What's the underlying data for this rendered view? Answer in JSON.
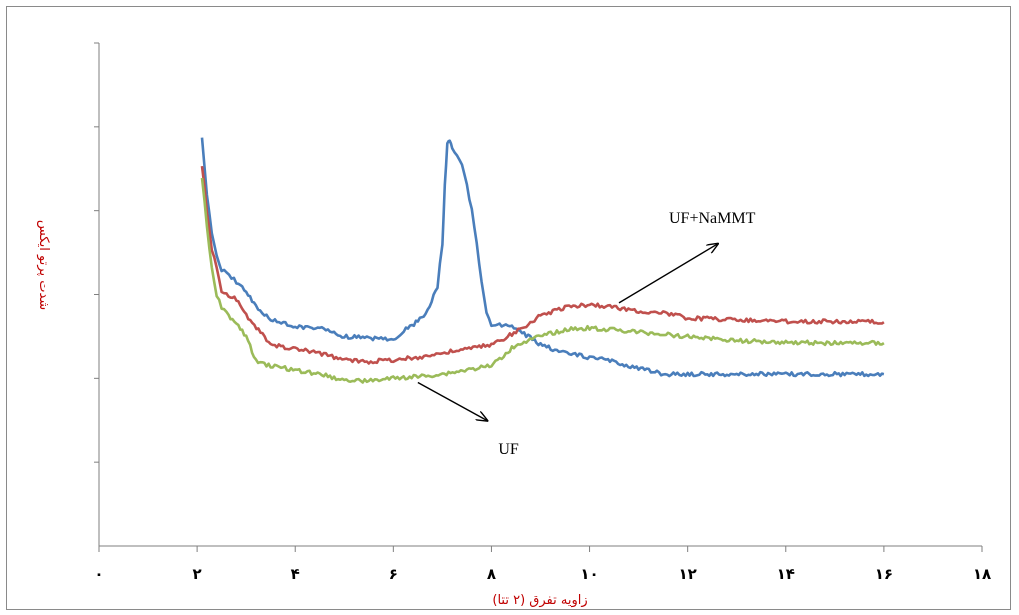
{
  "chart_data": {
    "type": "line",
    "xlabel": "زاویه تفرق (۲ تتا)",
    "ylabel": "شدت پرتو ایکس",
    "xlim": [
      0,
      18
    ],
    "x_ticks": [
      0,
      2,
      4,
      6,
      8,
      10,
      12,
      14,
      16,
      18
    ],
    "x_tick_labels": [
      "۰",
      "۲",
      "۴",
      "۶",
      "۸",
      "۱۰",
      "۱۲",
      "۱۴",
      "۱۶",
      "۱۸"
    ],
    "ylim": [
      0,
      6
    ],
    "y_ticks": [
      1,
      2,
      3,
      4,
      5,
      6
    ],
    "y_tick_labels": [
      "",
      "",
      "",
      "",
      "",
      ""
    ],
    "grid": false,
    "annotations": [
      {
        "text": "UF+NaMMT",
        "label_at": [
          12.5,
          3.85
        ],
        "arrow_from": [
          10.6,
          2.9
        ],
        "arrow_to": [
          12.6,
          3.6
        ]
      },
      {
        "text": "UF",
        "label_at": [
          8.35,
          1.1
        ],
        "arrow_from": [
          6.5,
          1.95
        ],
        "arrow_to": [
          7.9,
          1.5
        ]
      }
    ],
    "series": [
      {
        "color": "#4a7ebb",
        "x": [
          2.1,
          2.2,
          2.3,
          2.4,
          2.5,
          2.6,
          2.7,
          2.8,
          3.0,
          3.2,
          3.5,
          3.8,
          4.0,
          4.5,
          5.0,
          5.5,
          6.0,
          6.3,
          6.5,
          6.7,
          6.9,
          7.0,
          7.05,
          7.1,
          7.15,
          7.2,
          7.3,
          7.4,
          7.5,
          7.6,
          7.7,
          7.8,
          7.9,
          8.0,
          8.5,
          9.0,
          9.5,
          10.0,
          10.5,
          11.0,
          11.5,
          12.0,
          13.0,
          14.0,
          15.0,
          16.0
        ],
        "y": [
          4.85,
          4.2,
          3.75,
          3.45,
          3.3,
          3.25,
          3.2,
          3.15,
          3.05,
          2.85,
          2.7,
          2.65,
          2.62,
          2.6,
          2.5,
          2.48,
          2.47,
          2.6,
          2.68,
          2.8,
          3.1,
          3.6,
          4.3,
          4.8,
          4.85,
          4.75,
          4.65,
          4.55,
          4.3,
          4.0,
          3.6,
          3.15,
          2.8,
          2.65,
          2.6,
          2.4,
          2.3,
          2.25,
          2.2,
          2.12,
          2.05,
          2.05,
          2.05,
          2.05,
          2.05,
          2.05
        ]
      },
      {
        "color": "#c0504d",
        "x": [
          2.1,
          2.2,
          2.3,
          2.4,
          2.5,
          2.6,
          2.8,
          3.0,
          3.5,
          4.0,
          4.5,
          5.0,
          5.5,
          6.0,
          6.5,
          7.0,
          7.5,
          8.0,
          8.5,
          9.0,
          9.5,
          10.0,
          10.5,
          11.0,
          11.5,
          12.0,
          13.0,
          14.0,
          15.0,
          16.0
        ],
        "y": [
          4.55,
          4.0,
          3.55,
          3.3,
          3.05,
          3.0,
          2.95,
          2.75,
          2.4,
          2.35,
          2.3,
          2.22,
          2.2,
          2.22,
          2.25,
          2.3,
          2.35,
          2.4,
          2.55,
          2.75,
          2.85,
          2.88,
          2.85,
          2.8,
          2.78,
          2.72,
          2.7,
          2.68,
          2.68,
          2.67
        ]
      },
      {
        "color": "#9bbb59",
        "x": [
          2.1,
          2.2,
          2.3,
          2.4,
          2.5,
          2.6,
          2.8,
          3.0,
          3.2,
          3.5,
          4.0,
          4.5,
          5.0,
          5.5,
          6.0,
          6.5,
          7.0,
          7.5,
          8.0,
          8.5,
          9.0,
          9.5,
          10.0,
          10.5,
          11.0,
          12.0,
          13.0,
          14.0,
          15.0,
          16.0
        ],
        "y": [
          4.4,
          3.8,
          3.3,
          3.0,
          2.85,
          2.78,
          2.65,
          2.5,
          2.2,
          2.15,
          2.1,
          2.05,
          1.98,
          1.97,
          2.0,
          2.02,
          2.05,
          2.1,
          2.15,
          2.4,
          2.5,
          2.58,
          2.6,
          2.58,
          2.55,
          2.5,
          2.45,
          2.43,
          2.42,
          2.42
        ]
      }
    ]
  }
}
